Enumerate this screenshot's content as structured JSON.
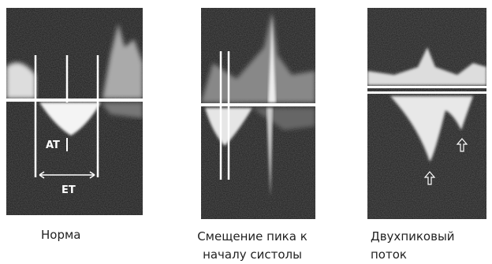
{
  "panels": [
    {
      "labels": [
        "AT",
        "ET"
      ],
      "caption": [
        "Норма"
      ]
    },
    {
      "caption": [
        "Смещение пика к",
        "началу систолы"
      ]
    },
    {
      "caption": [
        "Двухпиковый",
        "поток"
      ]
    }
  ]
}
